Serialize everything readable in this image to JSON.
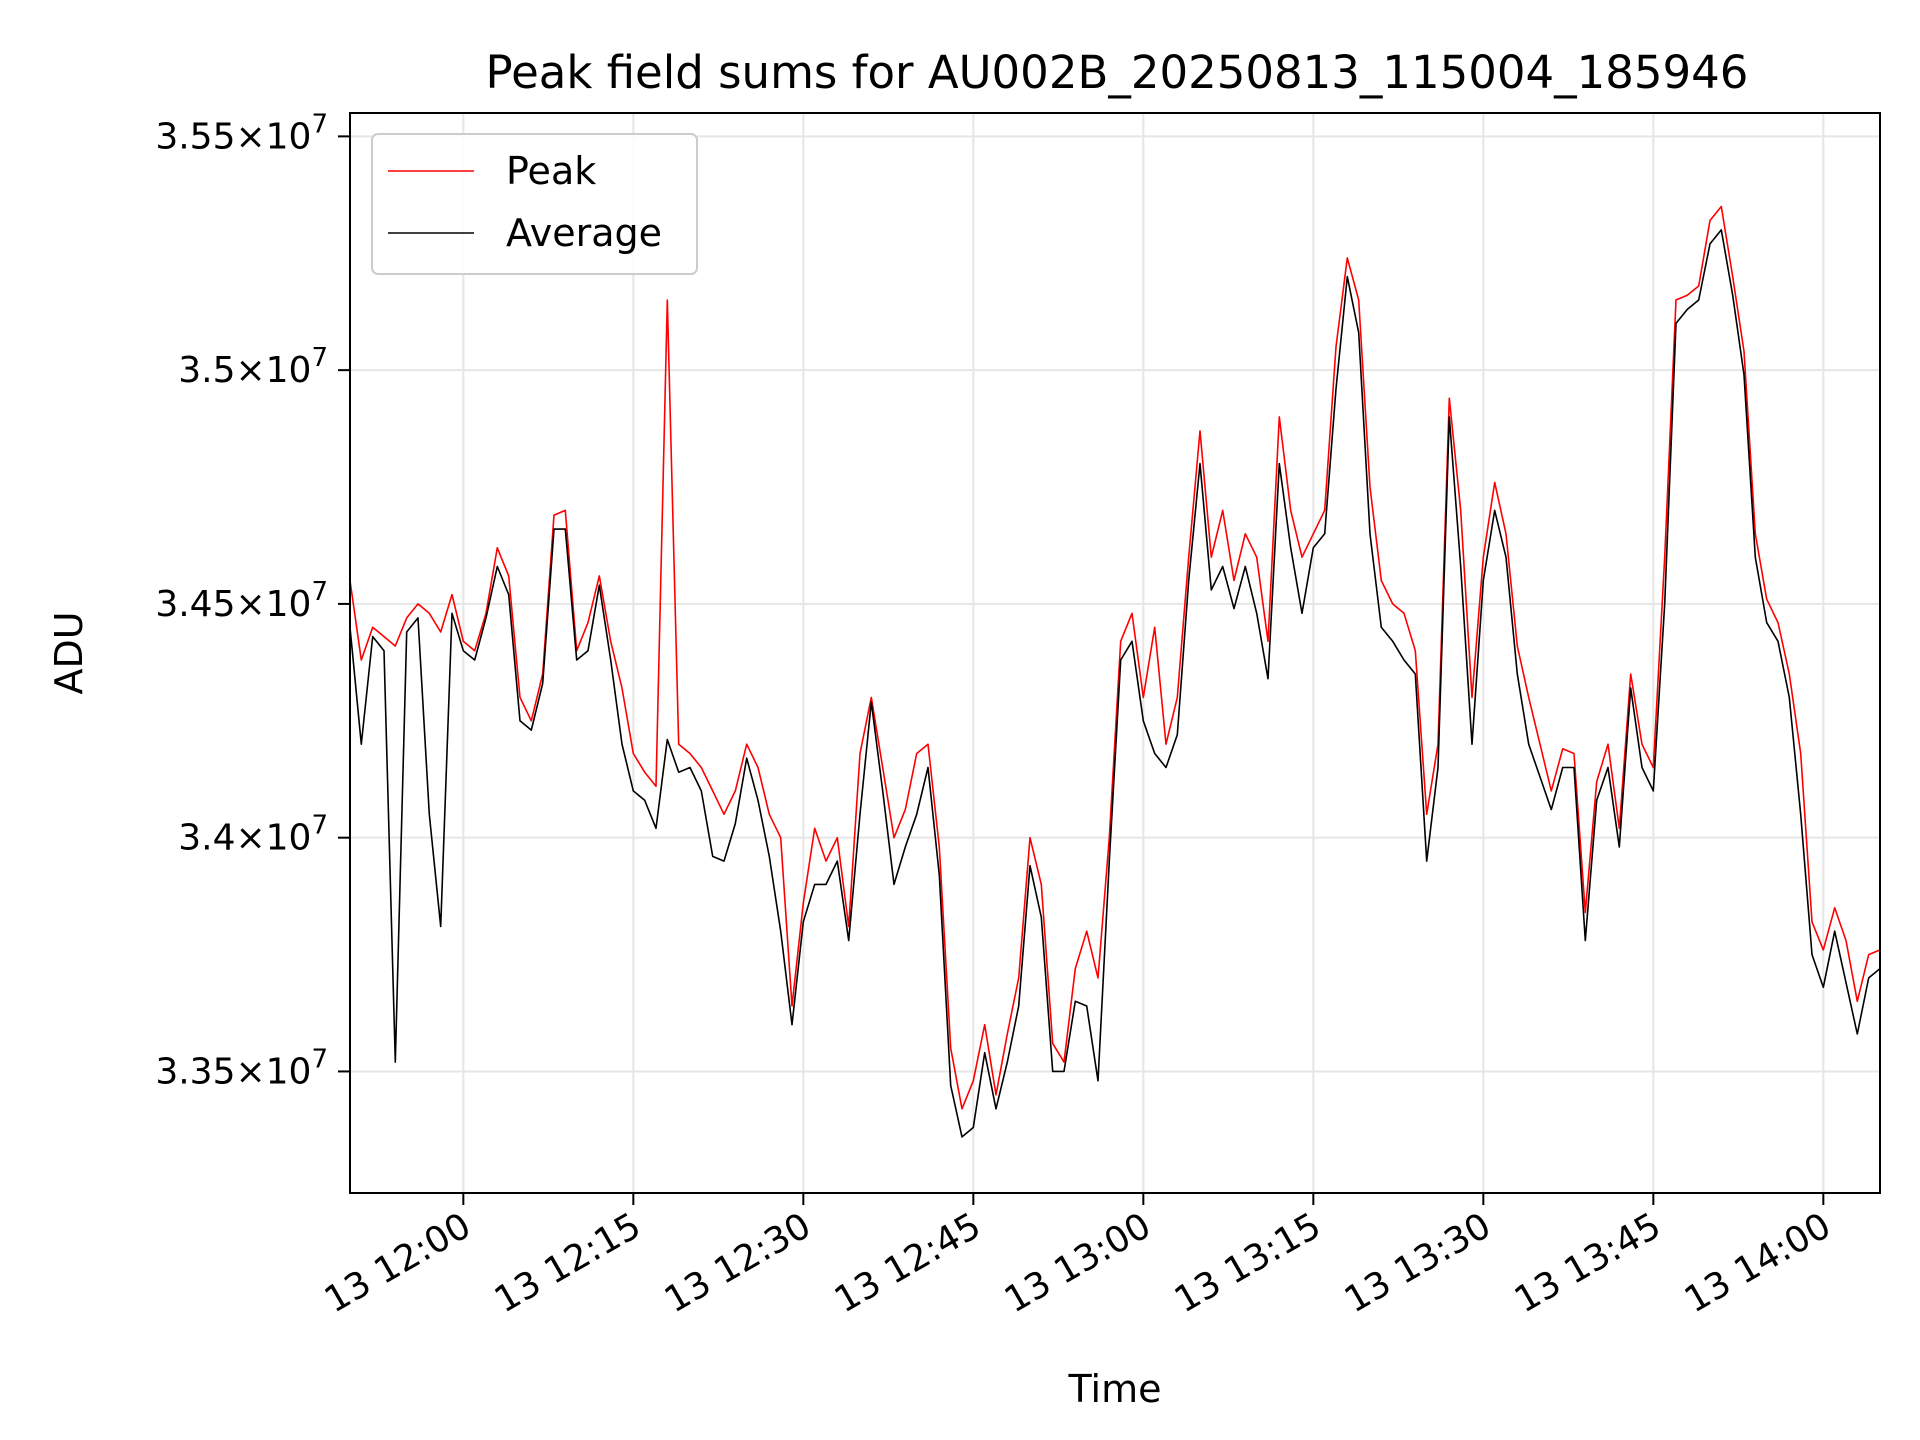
{
  "chart_data": {
    "type": "line",
    "title": "Peak field sums for AU002B_20250813_115004_185946",
    "xlabel": "Time",
    "ylabel": "ADU",
    "x_unit": "time (2025-08-13)",
    "xlim": [
      "11:50:00",
      "14:05:00"
    ],
    "ylim": [
      33240000,
      35550000
    ],
    "grid": true,
    "legend_position": "upper-left",
    "colors": {
      "Peak": "#ff0000",
      "Average": "#000000"
    },
    "x_ticks": [
      {
        "value": "12:00",
        "label": "13 12:00"
      },
      {
        "value": "12:15",
        "label": "13 12:15"
      },
      {
        "value": "12:30",
        "label": "13 12:30"
      },
      {
        "value": "12:45",
        "label": "13 12:45"
      },
      {
        "value": "13:00",
        "label": "13 13:00"
      },
      {
        "value": "13:15",
        "label": "13 13:15"
      },
      {
        "value": "13:30",
        "label": "13 13:30"
      },
      {
        "value": "13:45",
        "label": "13 13:45"
      },
      {
        "value": "14:00",
        "label": "13 14:00"
      }
    ],
    "y_ticks": [
      {
        "value": 33500000,
        "mantissa": "3.35",
        "exponent": "7"
      },
      {
        "value": 34000000,
        "mantissa": "3.4",
        "exponent": "7"
      },
      {
        "value": 34500000,
        "mantissa": "3.45",
        "exponent": "7"
      },
      {
        "value": 35000000,
        "mantissa": "3.5",
        "exponent": "7"
      },
      {
        "value": 35500000,
        "mantissa": "3.55",
        "exponent": "7"
      }
    ],
    "series": [
      {
        "name": "Peak",
        "x": [
          "11:50",
          "11:51",
          "11:52",
          "11:53",
          "11:54",
          "11:55",
          "11:56",
          "11:57",
          "11:58",
          "11:59",
          "12:00",
          "12:01",
          "12:02",
          "12:03",
          "12:04",
          "12:05",
          "12:06",
          "12:07",
          "12:08",
          "12:09",
          "12:10",
          "12:11",
          "12:12",
          "12:13",
          "12:14",
          "12:15",
          "12:16",
          "12:17",
          "12:18",
          "12:19",
          "12:20",
          "12:21",
          "12:22",
          "12:23",
          "12:24",
          "12:25",
          "12:26",
          "12:27",
          "12:28",
          "12:29",
          "12:30",
          "12:31",
          "12:32",
          "12:33",
          "12:34",
          "12:35",
          "12:36",
          "12:37",
          "12:38",
          "12:39",
          "12:40",
          "12:41",
          "12:42",
          "12:43",
          "12:44",
          "12:45",
          "12:46",
          "12:47",
          "12:48",
          "12:49",
          "12:50",
          "12:51",
          "12:52",
          "12:53",
          "12:54",
          "12:55",
          "12:56",
          "12:57",
          "12:58",
          "12:59",
          "13:00",
          "13:01",
          "13:02",
          "13:03",
          "13:04",
          "13:05",
          "13:06",
          "13:07",
          "13:08",
          "13:09",
          "13:10",
          "13:11",
          "13:12",
          "13:13",
          "13:14",
          "13:15",
          "13:16",
          "13:17",
          "13:18",
          "13:19",
          "13:20",
          "13:21",
          "13:22",
          "13:23",
          "13:24",
          "13:25",
          "13:26",
          "13:27",
          "13:28",
          "13:29",
          "13:30",
          "13:31",
          "13:32",
          "13:33",
          "13:34",
          "13:35",
          "13:36",
          "13:37",
          "13:38",
          "13:39",
          "13:40",
          "13:41",
          "13:42",
          "13:43",
          "13:44",
          "13:45",
          "13:46",
          "13:47",
          "13:48",
          "13:49",
          "13:50",
          "13:51",
          "13:52",
          "13:53",
          "13:54",
          "13:55",
          "13:56",
          "13:57",
          "13:58",
          "13:59",
          "14:00",
          "14:01",
          "14:02",
          "14:03",
          "14:04",
          "14:05"
        ],
        "values": [
          34550000,
          34380000,
          34450000,
          34430000,
          34410000,
          34470000,
          34500000,
          34480000,
          34440000,
          34520000,
          34420000,
          34400000,
          34480000,
          34620000,
          34560000,
          34300000,
          34250000,
          34350000,
          34690000,
          34700000,
          34400000,
          34460000,
          34560000,
          34420000,
          34320000,
          34180000,
          34140000,
          34110000,
          35150000,
          34200000,
          34180000,
          34150000,
          34100000,
          34050000,
          34100000,
          34200000,
          34150000,
          34050000,
          34000000,
          33640000,
          33860000,
          34020000,
          33950000,
          34000000,
          33810000,
          34180000,
          34300000,
          34150000,
          34000000,
          34060000,
          34180000,
          34200000,
          33980000,
          33550000,
          33420000,
          33480000,
          33600000,
          33450000,
          33580000,
          33700000,
          34000000,
          33900000,
          33560000,
          33520000,
          33720000,
          33800000,
          33700000,
          34000000,
          34420000,
          34480000,
          34300000,
          34450000,
          34200000,
          34300000,
          34600000,
          34870000,
          34600000,
          34700000,
          34550000,
          34650000,
          34600000,
          34420000,
          34900000,
          34700000,
          34600000,
          34650000,
          34700000,
          35050000,
          35240000,
          35150000,
          34750000,
          34550000,
          34500000,
          34480000,
          34400000,
          34050000,
          34200000,
          34940000,
          34700000,
          34300000,
          34600000,
          34760000,
          34650000,
          34410000,
          34300000,
          34200000,
          34100000,
          34190000,
          34180000,
          33840000,
          34120000,
          34200000,
          34020000,
          34350000,
          34200000,
          34150000,
          34600000,
          35150000,
          35160000,
          35180000,
          35320000,
          35350000,
          35200000,
          35040000,
          34650000,
          34510000,
          34460000,
          34350000,
          34180000,
          33820000,
          33760000,
          33850000,
          33780000,
          33650000,
          33750000,
          33760000
        ]
      },
      {
        "name": "Average",
        "x": [
          "11:50",
          "11:51",
          "11:52",
          "11:53",
          "11:54",
          "11:55",
          "11:56",
          "11:57",
          "11:58",
          "11:59",
          "12:00",
          "12:01",
          "12:02",
          "12:03",
          "12:04",
          "12:05",
          "12:06",
          "12:07",
          "12:08",
          "12:09",
          "12:10",
          "12:11",
          "12:12",
          "12:13",
          "12:14",
          "12:15",
          "12:16",
          "12:17",
          "12:18",
          "12:19",
          "12:20",
          "12:21",
          "12:22",
          "12:23",
          "12:24",
          "12:25",
          "12:26",
          "12:27",
          "12:28",
          "12:29",
          "12:30",
          "12:31",
          "12:32",
          "12:33",
          "12:34",
          "12:35",
          "12:36",
          "12:37",
          "12:38",
          "12:39",
          "12:40",
          "12:41",
          "12:42",
          "12:43",
          "12:44",
          "12:45",
          "12:46",
          "12:47",
          "12:48",
          "12:49",
          "12:50",
          "12:51",
          "12:52",
          "12:53",
          "12:54",
          "12:55",
          "12:56",
          "12:57",
          "12:58",
          "12:59",
          "13:00",
          "13:01",
          "13:02",
          "13:03",
          "13:04",
          "13:05",
          "13:06",
          "13:07",
          "13:08",
          "13:09",
          "13:10",
          "13:11",
          "13:12",
          "13:13",
          "13:14",
          "13:15",
          "13:16",
          "13:17",
          "13:18",
          "13:19",
          "13:20",
          "13:21",
          "13:22",
          "13:23",
          "13:24",
          "13:25",
          "13:26",
          "13:27",
          "13:28",
          "13:29",
          "13:30",
          "13:31",
          "13:32",
          "13:33",
          "13:34",
          "13:35",
          "13:36",
          "13:37",
          "13:38",
          "13:39",
          "13:40",
          "13:41",
          "13:42",
          "13:43",
          "13:44",
          "13:45",
          "13:46",
          "13:47",
          "13:48",
          "13:49",
          "13:50",
          "13:51",
          "13:52",
          "13:53",
          "13:54",
          "13:55",
          "13:56",
          "13:57",
          "13:58",
          "13:59",
          "14:00",
          "14:01",
          "14:02",
          "14:03",
          "14:04",
          "14:05"
        ],
        "values": [
          34450000,
          34200000,
          34430000,
          34400000,
          33520000,
          34440000,
          34470000,
          34050000,
          33810000,
          34480000,
          34400000,
          34380000,
          34470000,
          34580000,
          34520000,
          34250000,
          34230000,
          34330000,
          34660000,
          34660000,
          34380000,
          34400000,
          34540000,
          34380000,
          34200000,
          34100000,
          34080000,
          34020000,
          34210000,
          34140000,
          34150000,
          34100000,
          33960000,
          33950000,
          34030000,
          34170000,
          34080000,
          33960000,
          33800000,
          33600000,
          33820000,
          33900000,
          33900000,
          33950000,
          33780000,
          34050000,
          34290000,
          34100000,
          33900000,
          33980000,
          34050000,
          34150000,
          33920000,
          33470000,
          33360000,
          33380000,
          33540000,
          33420000,
          33520000,
          33640000,
          33940000,
          33830000,
          33500000,
          33500000,
          33650000,
          33640000,
          33480000,
          33950000,
          34380000,
          34420000,
          34250000,
          34180000,
          34150000,
          34220000,
          34550000,
          34800000,
          34530000,
          34580000,
          34490000,
          34580000,
          34480000,
          34340000,
          34800000,
          34620000,
          34480000,
          34620000,
          34650000,
          34960000,
          35200000,
          35080000,
          34650000,
          34450000,
          34420000,
          34380000,
          34350000,
          33950000,
          34150000,
          34900000,
          34580000,
          34200000,
          34550000,
          34700000,
          34600000,
          34350000,
          34200000,
          34130000,
          34060000,
          34150000,
          34150000,
          33780000,
          34080000,
          34150000,
          33980000,
          34320000,
          34150000,
          34100000,
          34500000,
          35100000,
          35130000,
          35150000,
          35270000,
          35300000,
          35160000,
          34990000,
          34600000,
          34460000,
          34420000,
          34300000,
          34050000,
          33750000,
          33680000,
          33800000,
          33690000,
          33580000,
          33700000,
          33720000
        ]
      }
    ]
  }
}
